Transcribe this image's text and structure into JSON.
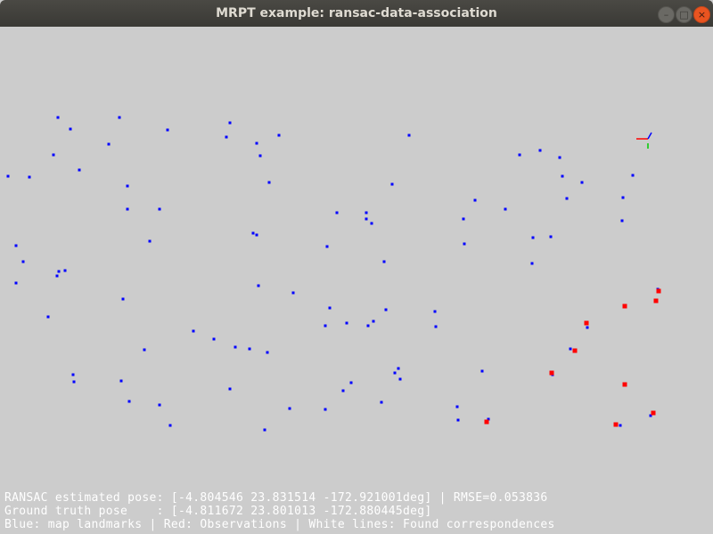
{
  "window": {
    "title": "MRPT example: ransac-data-association",
    "buttons": {
      "minimize": "–",
      "maximize": "□",
      "close": "×"
    }
  },
  "status": {
    "ransac_line": "RANSAC estimated pose: [-4.804546 23.831514 -172.921001deg] | RMSE=0.053836",
    "ground_truth_line": "Ground truth pose    : [-4.811672 23.801013 -172.880445deg]",
    "legend_line": "Blue: map landmarks | Red: Observations | White lines: Found correspondences"
  },
  "colors": {
    "background": "#cccccc",
    "landmarks": "#0000ff",
    "observations": "#ff0000",
    "correspondences": "#ffffff"
  }
}
